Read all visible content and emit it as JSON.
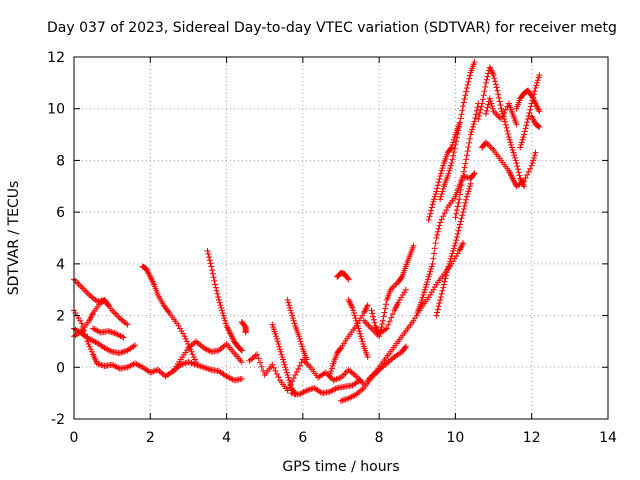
{
  "chart_data": {
    "type": "scatter",
    "title": "Day 037 of 2023, Sidereal Day-to-day VTEC variation (SDTVAR) for receiver metg",
    "xlabel": "GPS time / hours",
    "ylabel": "SDTVAR / TECUs",
    "xlim": [
      0,
      14
    ],
    "ylim": [
      -2,
      12
    ],
    "xticks": [
      "0",
      "2",
      "4",
      "6",
      "8",
      "10",
      "12",
      "14"
    ],
    "yticks": [
      "-2",
      "0",
      "2",
      "4",
      "6",
      "8",
      "10",
      "12"
    ],
    "grid": true,
    "marker": "+",
    "color": "#ff0000",
    "series": [
      {
        "values": [
          [
            0.0,
            3.4
          ],
          [
            0.2,
            3.1
          ],
          [
            0.4,
            2.8
          ],
          [
            0.6,
            2.55
          ],
          [
            0.8,
            2.6
          ],
          [
            1.0,
            2.2
          ],
          [
            1.2,
            1.9
          ],
          [
            1.4,
            1.65
          ]
        ]
      },
      {
        "values": [
          [
            0.0,
            1.2
          ],
          [
            0.2,
            1.4
          ],
          [
            0.4,
            1.8
          ],
          [
            0.5,
            2.1
          ],
          [
            0.7,
            2.5
          ],
          [
            0.8,
            2.6
          ],
          [
            0.9,
            2.4
          ]
        ]
      },
      {
        "values": [
          [
            0.0,
            2.2
          ],
          [
            0.2,
            1.7
          ],
          [
            0.35,
            1.0
          ],
          [
            0.5,
            0.5
          ],
          [
            0.6,
            0.15
          ],
          [
            0.8,
            0.05
          ],
          [
            1.0,
            0.1
          ],
          [
            1.2,
            -0.05
          ],
          [
            1.4,
            0.0
          ],
          [
            1.6,
            0.15
          ],
          [
            1.8,
            0.0
          ],
          [
            2.0,
            -0.2
          ],
          [
            2.2,
            -0.1
          ],
          [
            2.4,
            -0.35
          ],
          [
            2.6,
            -0.15
          ],
          [
            2.8,
            0.1
          ],
          [
            3.0,
            0.2
          ],
          [
            3.2,
            0.1
          ],
          [
            3.4,
            0.0
          ],
          [
            3.6,
            -0.1
          ],
          [
            3.8,
            -0.15
          ],
          [
            4.0,
            -0.35
          ],
          [
            4.2,
            -0.5
          ],
          [
            4.4,
            -0.45
          ]
        ]
      },
      {
        "values": [
          [
            0.0,
            1.5
          ],
          [
            0.2,
            1.3
          ],
          [
            0.4,
            1.1
          ],
          [
            0.6,
            0.95
          ],
          [
            0.8,
            0.75
          ],
          [
            1.0,
            0.6
          ],
          [
            1.2,
            0.55
          ],
          [
            1.4,
            0.65
          ],
          [
            1.6,
            0.85
          ]
        ]
      },
      {
        "values": [
          [
            0.5,
            1.5
          ],
          [
            0.7,
            1.35
          ],
          [
            0.9,
            1.4
          ],
          [
            1.1,
            1.3
          ],
          [
            1.3,
            1.15
          ]
        ]
      },
      {
        "values": [
          [
            1.8,
            3.9
          ],
          [
            1.9,
            3.8
          ],
          [
            2.0,
            3.5
          ],
          [
            2.1,
            3.2
          ],
          [
            2.2,
            2.8
          ],
          [
            2.35,
            2.4
          ],
          [
            2.5,
            2.1
          ],
          [
            2.7,
            1.7
          ],
          [
            2.9,
            1.2
          ],
          [
            3.05,
            0.7
          ],
          [
            3.2,
            0.2
          ]
        ]
      },
      {
        "values": [
          [
            2.6,
            -0.15
          ],
          [
            2.8,
            0.3
          ],
          [
            3.0,
            0.75
          ],
          [
            3.2,
            1.0
          ],
          [
            3.4,
            0.75
          ],
          [
            3.6,
            0.6
          ],
          [
            3.8,
            0.65
          ],
          [
            4.0,
            0.9
          ],
          [
            4.2,
            0.55
          ],
          [
            4.4,
            0.2
          ]
        ]
      },
      {
        "values": [
          [
            3.5,
            4.5
          ],
          [
            3.6,
            3.9
          ],
          [
            3.7,
            3.2
          ],
          [
            3.8,
            2.6
          ],
          [
            3.9,
            2.1
          ],
          [
            4.0,
            1.6
          ],
          [
            4.1,
            1.3
          ],
          [
            4.2,
            1.0
          ],
          [
            4.3,
            0.8
          ],
          [
            4.4,
            0.65
          ]
        ]
      },
      {
        "values": [
          [
            4.4,
            1.75
          ],
          [
            4.5,
            1.55
          ],
          [
            4.5,
            1.35
          ]
        ]
      },
      {
        "values": [
          [
            4.6,
            0.25
          ],
          [
            4.8,
            0.5
          ],
          [
            5.0,
            -0.3
          ],
          [
            5.2,
            0.1
          ],
          [
            5.4,
            -0.5
          ],
          [
            5.6,
            -0.9
          ],
          [
            5.8,
            -0.3
          ],
          [
            6.0,
            0.3
          ],
          [
            6.2,
            0.0
          ],
          [
            6.4,
            -0.4
          ],
          [
            6.6,
            -0.2
          ],
          [
            6.8,
            -0.5
          ],
          [
            7.0,
            -0.4
          ],
          [
            7.2,
            -0.1
          ],
          [
            7.4,
            -0.35
          ],
          [
            7.6,
            -0.65
          ]
        ]
      },
      {
        "values": [
          [
            5.2,
            1.65
          ],
          [
            5.3,
            1.2
          ],
          [
            5.4,
            0.7
          ],
          [
            5.5,
            0.2
          ],
          [
            5.6,
            -0.3
          ],
          [
            5.7,
            -0.8
          ],
          [
            5.8,
            -1.05
          ]
        ]
      },
      {
        "values": [
          [
            5.6,
            2.6
          ],
          [
            5.7,
            2.1
          ],
          [
            5.8,
            1.6
          ],
          [
            5.9,
            1.2
          ],
          [
            6.0,
            0.7
          ],
          [
            6.1,
            0.3
          ]
        ]
      },
      {
        "values": [
          [
            5.7,
            -1.0
          ],
          [
            5.9,
            -1.05
          ],
          [
            6.1,
            -0.9
          ],
          [
            6.3,
            -0.8
          ],
          [
            6.5,
            -1.0
          ],
          [
            6.7,
            -0.95
          ],
          [
            6.9,
            -0.8
          ],
          [
            7.1,
            -0.75
          ],
          [
            7.3,
            -0.7
          ],
          [
            7.5,
            -0.5
          ]
        ]
      },
      {
        "values": [
          [
            6.7,
            -0.35
          ],
          [
            6.8,
            0.15
          ],
          [
            6.9,
            0.55
          ],
          [
            7.0,
            0.75
          ],
          [
            7.2,
            1.2
          ],
          [
            7.4,
            1.6
          ],
          [
            7.6,
            2.1
          ],
          [
            7.7,
            2.4
          ]
        ]
      },
      {
        "values": [
          [
            6.9,
            3.5
          ],
          [
            7.0,
            3.65
          ],
          [
            7.1,
            3.6
          ],
          [
            7.2,
            3.4
          ]
        ]
      },
      {
        "values": [
          [
            7.0,
            -1.3
          ],
          [
            7.2,
            -1.2
          ],
          [
            7.4,
            -1.05
          ],
          [
            7.6,
            -0.8
          ],
          [
            7.8,
            -0.4
          ],
          [
            8.0,
            -0.1
          ],
          [
            8.2,
            0.15
          ],
          [
            8.4,
            0.4
          ],
          [
            8.6,
            0.6
          ],
          [
            8.7,
            0.8
          ]
        ]
      },
      {
        "values": [
          [
            7.2,
            2.6
          ],
          [
            7.3,
            2.3
          ],
          [
            7.4,
            1.8
          ],
          [
            7.5,
            1.3
          ],
          [
            7.6,
            0.8
          ],
          [
            7.7,
            0.4
          ]
        ]
      },
      {
        "values": [
          [
            7.6,
            1.8
          ],
          [
            7.8,
            1.5
          ],
          [
            8.0,
            1.2
          ],
          [
            8.1,
            1.8
          ],
          [
            8.2,
            2.6
          ],
          [
            8.3,
            3.0
          ],
          [
            8.5,
            3.3
          ],
          [
            8.6,
            3.5
          ],
          [
            8.7,
            3.9
          ],
          [
            8.8,
            4.3
          ],
          [
            8.9,
            4.7
          ]
        ]
      },
      {
        "values": [
          [
            7.7,
            -0.5
          ],
          [
            7.9,
            -0.2
          ],
          [
            8.1,
            0.2
          ],
          [
            8.3,
            0.6
          ],
          [
            8.5,
            1.0
          ],
          [
            8.7,
            1.4
          ],
          [
            8.9,
            1.8
          ],
          [
            9.1,
            2.3
          ],
          [
            9.3,
            2.7
          ],
          [
            9.5,
            3.2
          ],
          [
            9.7,
            3.6
          ],
          [
            9.9,
            4.0
          ],
          [
            10.1,
            4.5
          ],
          [
            10.2,
            4.8
          ]
        ]
      },
      {
        "values": [
          [
            7.8,
            2.2
          ],
          [
            7.9,
            1.6
          ],
          [
            8.0,
            1.3
          ],
          [
            8.2,
            1.5
          ],
          [
            8.4,
            2.2
          ],
          [
            8.5,
            2.5
          ],
          [
            8.7,
            3.0
          ]
        ]
      },
      {
        "values": [
          [
            9.0,
            2.1
          ],
          [
            9.1,
            2.5
          ],
          [
            9.2,
            3.0
          ],
          [
            9.3,
            3.5
          ],
          [
            9.4,
            4.0
          ],
          [
            9.5,
            5.0
          ],
          [
            9.6,
            5.6
          ],
          [
            9.8,
            6.2
          ],
          [
            10.0,
            6.6
          ],
          [
            10.1,
            7.0
          ],
          [
            10.2,
            7.4
          ],
          [
            10.4,
            7.3
          ],
          [
            10.5,
            7.5
          ]
        ]
      },
      {
        "values": [
          [
            9.3,
            5.7
          ],
          [
            9.4,
            6.3
          ],
          [
            9.5,
            6.8
          ],
          [
            9.6,
            7.4
          ],
          [
            9.7,
            7.9
          ],
          [
            9.8,
            8.3
          ],
          [
            9.9,
            8.5
          ],
          [
            10.0,
            9.0
          ],
          [
            10.1,
            9.4
          ]
        ]
      },
      {
        "values": [
          [
            9.5,
            2.0
          ],
          [
            9.6,
            2.6
          ],
          [
            9.7,
            3.2
          ],
          [
            9.8,
            3.8
          ],
          [
            9.9,
            4.3
          ],
          [
            10.0,
            4.8
          ],
          [
            10.1,
            5.4
          ],
          [
            10.2,
            6.0
          ],
          [
            10.3,
            6.6
          ],
          [
            10.4,
            7.1
          ]
        ]
      },
      {
        "values": [
          [
            9.6,
            6.5
          ],
          [
            9.7,
            7.0
          ],
          [
            9.8,
            7.4
          ],
          [
            9.9,
            7.9
          ],
          [
            10.0,
            8.6
          ],
          [
            10.1,
            9.3
          ],
          [
            10.2,
            10.1
          ],
          [
            10.3,
            10.8
          ],
          [
            10.4,
            11.4
          ],
          [
            10.5,
            11.8
          ]
        ]
      },
      {
        "values": [
          [
            10.0,
            5.8
          ],
          [
            10.1,
            6.5
          ],
          [
            10.2,
            7.4
          ],
          [
            10.3,
            8.2
          ],
          [
            10.4,
            9.0
          ],
          [
            10.5,
            9.5
          ],
          [
            10.6,
            10.2
          ]
        ]
      },
      {
        "values": [
          [
            10.7,
            8.5
          ],
          [
            10.8,
            8.7
          ],
          [
            11.0,
            8.4
          ],
          [
            11.2,
            8.0
          ],
          [
            11.4,
            7.6
          ],
          [
            11.5,
            7.3
          ],
          [
            11.6,
            7.0
          ],
          [
            11.8,
            7.2
          ],
          [
            12.0,
            7.8
          ],
          [
            12.1,
            8.3
          ]
        ]
      },
      {
        "values": [
          [
            10.6,
            9.6
          ],
          [
            10.7,
            10.2
          ],
          [
            10.8,
            11.0
          ],
          [
            10.9,
            11.6
          ],
          [
            11.0,
            11.3
          ],
          [
            11.1,
            10.7
          ],
          [
            11.2,
            10.0
          ],
          [
            11.3,
            9.5
          ],
          [
            11.4,
            8.9
          ],
          [
            11.5,
            8.4
          ],
          [
            11.6,
            7.9
          ],
          [
            11.7,
            7.3
          ],
          [
            11.8,
            7.0
          ]
        ]
      },
      {
        "values": [
          [
            10.8,
            9.8
          ],
          [
            10.9,
            10.4
          ],
          [
            11.0,
            9.9
          ],
          [
            11.2,
            9.6
          ],
          [
            11.4,
            10.2
          ],
          [
            11.5,
            9.8
          ],
          [
            11.6,
            9.4
          ]
        ]
      },
      {
        "values": [
          [
            11.6,
            10.0
          ],
          [
            11.7,
            10.4
          ],
          [
            11.8,
            10.6
          ],
          [
            11.9,
            10.7
          ],
          [
            12.0,
            10.5
          ],
          [
            12.1,
            10.2
          ],
          [
            12.2,
            9.9
          ]
        ]
      },
      {
        "values": [
          [
            11.7,
            8.5
          ],
          [
            11.8,
            9.0
          ],
          [
            11.9,
            9.6
          ],
          [
            12.0,
            10.2
          ],
          [
            12.1,
            10.8
          ],
          [
            12.2,
            11.3
          ]
        ]
      },
      {
        "values": [
          [
            12.0,
            9.7
          ],
          [
            12.1,
            9.4
          ],
          [
            12.2,
            9.3
          ]
        ]
      }
    ]
  }
}
